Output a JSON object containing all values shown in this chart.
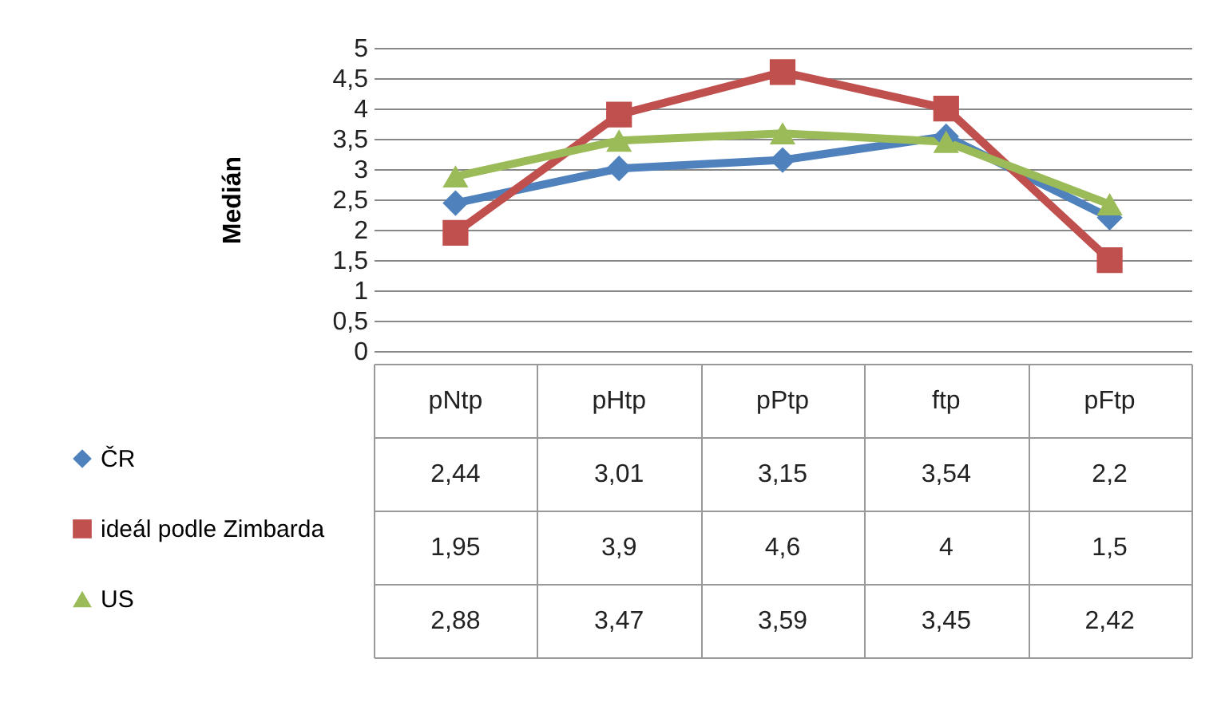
{
  "chart_data": {
    "type": "line",
    "ylabel": "Medián",
    "categories": [
      "pNtp",
      "pHtp",
      "pPtp",
      "ftp",
      "pFtp"
    ],
    "series": [
      {
        "name": "ČR",
        "color": "#4f81bd",
        "marker": "diamond",
        "values": [
          2.44,
          3.01,
          3.15,
          3.54,
          2.2
        ],
        "value_labels": [
          "2,44",
          "3,01",
          "3,15",
          "3,54",
          "2,2"
        ]
      },
      {
        "name": "ideál podle Zimbarda",
        "color": "#c0504d",
        "marker": "square",
        "values": [
          1.95,
          3.9,
          4.6,
          4,
          1.5
        ],
        "value_labels": [
          "1,95",
          "3,9",
          "4,6",
          "4",
          "1,5"
        ]
      },
      {
        "name": "US",
        "color": "#9bbb59",
        "marker": "triangle",
        "values": [
          2.88,
          3.47,
          3.59,
          3.45,
          2.42
        ],
        "value_labels": [
          "2,88",
          "3,47",
          "3,59",
          "3,45",
          "2,42"
        ]
      }
    ],
    "ylim": [
      0,
      5
    ],
    "yticks": [
      0,
      {
        "value": 0.5,
        "label": "0,5"
      },
      1,
      {
        "value": 1.5,
        "label": "1,5"
      },
      2,
      {
        "value": 2.5,
        "label": "2,5"
      },
      3,
      {
        "value": 3.5,
        "label": "3,5"
      },
      4,
      {
        "value": 4.5,
        "label": "4,5"
      },
      5
    ],
    "grid": "y",
    "legend": "bottom left"
  }
}
